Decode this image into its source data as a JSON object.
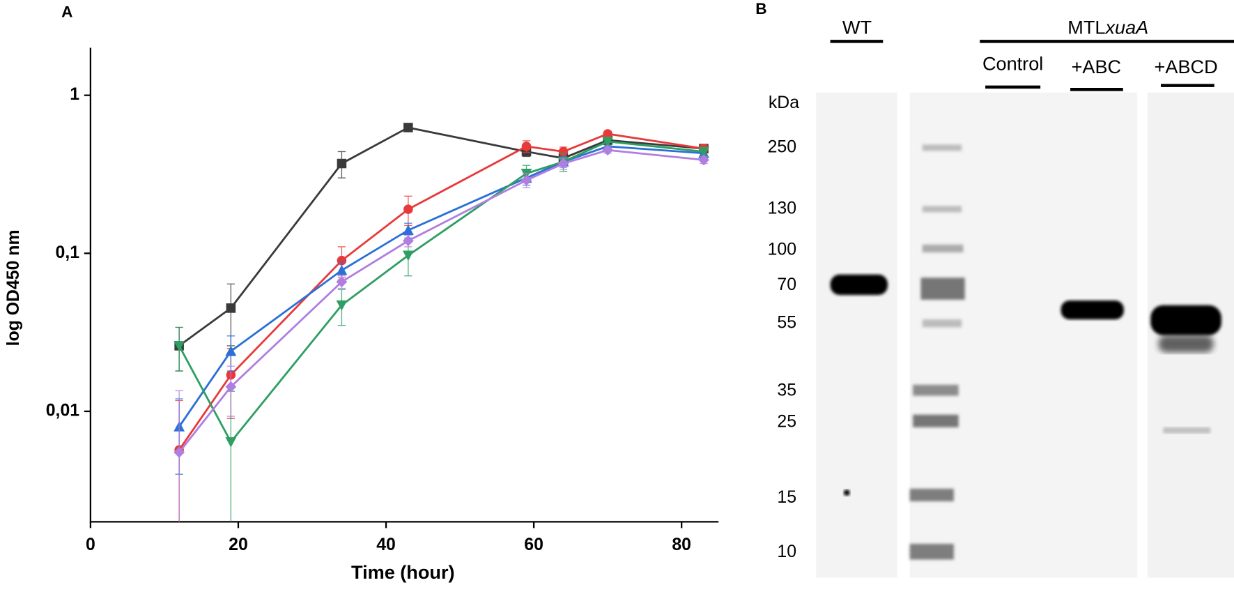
{
  "chart_data": {
    "type": "line",
    "panel_label": "A",
    "x_label": "Time (hour)",
    "y_label": "log OD450 nm",
    "x": [
      12,
      19,
      34,
      43,
      59,
      64,
      70,
      83
    ],
    "xlim": [
      0,
      85
    ],
    "xticks": [
      0,
      20,
      40,
      60,
      80
    ],
    "log_y": true,
    "ylim": [
      0.002,
      2
    ],
    "yticks": [
      {
        "value": 0.01,
        "label": "0,01"
      },
      {
        "value": 0.1,
        "label": "0,1"
      },
      1
    ],
    "series": [
      {
        "color": "#3a3a3a",
        "marker": "square",
        "values": [
          0.026,
          0.045,
          0.37,
          0.625,
          0.44,
          0.4,
          0.52,
          0.46
        ],
        "errors": [
          0.008,
          0.019,
          0.07,
          0.02,
          0.03,
          0.02,
          0.02,
          0.02
        ]
      },
      {
        "color": "#e8393a",
        "marker": "circle",
        "values": [
          0.0057,
          0.017,
          0.09,
          0.19,
          0.475,
          0.44,
          0.57,
          0.46
        ],
        "errors": [
          0.006,
          0.008,
          0.02,
          0.04,
          0.04,
          0.03,
          0.02,
          0.03
        ]
      },
      {
        "color": "#2c6fd6",
        "marker": "triangle",
        "values": [
          0.008,
          0.024,
          0.078,
          0.14,
          0.3,
          0.38,
          0.475,
          0.43
        ],
        "errors": [
          0.004,
          0.006,
          0.01,
          0.015,
          0.03,
          0.03,
          0.03,
          0.02
        ]
      },
      {
        "color": "#2e9e63",
        "marker": "triangle-down",
        "values": [
          0.026,
          0.0064,
          0.047,
          0.097,
          0.32,
          0.38,
          0.51,
          0.44
        ],
        "errors": [
          0.008,
          0.007,
          0.012,
          0.025,
          0.04,
          0.05,
          0.03,
          0.02
        ]
      },
      {
        "color": "#b07ee0",
        "marker": "diamond",
        "values": [
          0.0055,
          0.0143,
          0.066,
          0.12,
          0.29,
          0.37,
          0.45,
          0.39
        ],
        "errors": [
          0.008,
          0.005,
          0.006,
          0.01,
          0.03,
          0.03,
          0.02,
          0.02
        ]
      }
    ]
  },
  "blot": {
    "panel_label": "B",
    "wt": "WT",
    "mtl_prefix": "MTL",
    "mtl_italic": "xuaA",
    "lanes": [
      "Control",
      "+ABC",
      "+ABCD"
    ],
    "unit": "kDa",
    "markers": [
      "250",
      "130",
      "100",
      "70",
      "55",
      "35",
      "25",
      "15",
      "10"
    ]
  }
}
